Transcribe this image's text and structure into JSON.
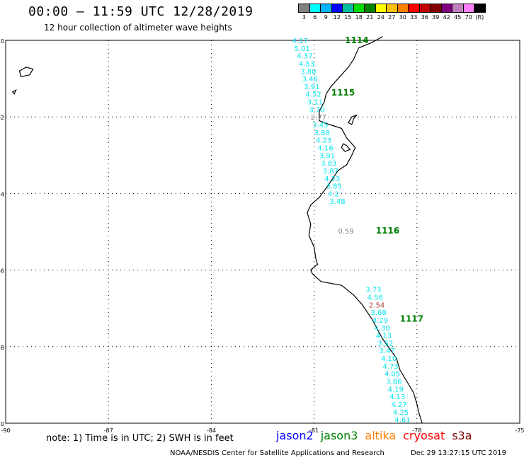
{
  "header": {
    "title": "00:00 – 11:59 UTC 12/28/2019",
    "subtitle": "12 hour collection of altimeter wave heights"
  },
  "colorbar": {
    "colors": [
      "#808080",
      "#00ffff",
      "#00b4ff",
      "#0000ff",
      "#00bfa0",
      "#00dc00",
      "#008000",
      "#ffff00",
      "#ffc000",
      "#ff8000",
      "#ff0000",
      "#c00000",
      "#800000",
      "#800080",
      "#c080c0",
      "#ff80ff",
      "#000000"
    ],
    "labels": [
      "3",
      "6",
      "9",
      "12",
      "15",
      "18",
      "21",
      "24",
      "27",
      "30",
      "33",
      "36",
      "39",
      "42",
      "45",
      "70",
      "(ft)"
    ]
  },
  "map": {
    "x_ticks": [
      {
        "value": -90,
        "label": "-90"
      },
      {
        "value": -87,
        "label": "-87"
      },
      {
        "value": -84,
        "label": "-84"
      },
      {
        "value": -81,
        "label": "-81"
      },
      {
        "value": -78,
        "label": "-78"
      },
      {
        "value": -75,
        "label": "-75"
      }
    ],
    "y_ticks": [
      {
        "value": 0,
        "label": "0"
      },
      {
        "value": -2,
        "label": "-2"
      },
      {
        "value": -4,
        "label": "-4"
      },
      {
        "value": -6,
        "label": "-6"
      },
      {
        "value": -8,
        "label": "-8"
      },
      {
        "value": -10,
        "label": "-10"
      }
    ],
    "colors": {
      "cyan": "#00e5ee",
      "gray": "#808080",
      "brown": "#a04040",
      "track": "#008000"
    },
    "track_labels": [
      {
        "text": "1114",
        "lon": -80.1,
        "lat": 0.0
      },
      {
        "text": "1115",
        "lon": -80.5,
        "lat": -1.37
      },
      {
        "text": "1116",
        "lon": -79.2,
        "lat": -4.97
      },
      {
        "text": "1117",
        "lon": -78.5,
        "lat": -7.27
      }
    ],
    "wave_heights": [
      {
        "text": "4.17",
        "lon": -81.64,
        "lat": 0.0,
        "color": "cyan"
      },
      {
        "text": "5.01",
        "lon": -81.58,
        "lat": -0.2,
        "color": "cyan"
      },
      {
        "text": "4.37",
        "lon": -81.5,
        "lat": -0.4,
        "color": "cyan"
      },
      {
        "text": "4.53",
        "lon": -81.45,
        "lat": -0.6,
        "color": "cyan"
      },
      {
        "text": "3.80",
        "lon": -81.4,
        "lat": -0.8,
        "color": "cyan"
      },
      {
        "text": "3.46",
        "lon": -81.35,
        "lat": -1.0,
        "color": "cyan"
      },
      {
        "text": "3.91",
        "lon": -81.3,
        "lat": -1.2,
        "color": "cyan"
      },
      {
        "text": "4.52",
        "lon": -81.25,
        "lat": -1.4,
        "color": "cyan"
      },
      {
        "text": "3.11",
        "lon": -81.2,
        "lat": -1.6,
        "color": "cyan"
      },
      {
        "text": "3.70",
        "lon": -81.15,
        "lat": -1.8,
        "color": "cyan"
      },
      {
        "text": "2.77",
        "lon": -81.1,
        "lat": -2.0,
        "color": "gray"
      },
      {
        "text": "3.45",
        "lon": -81.05,
        "lat": -2.2,
        "color": "cyan"
      },
      {
        "text": "3.88",
        "lon": -81.0,
        "lat": -2.4,
        "color": "cyan"
      },
      {
        "text": "4.23",
        "lon": -80.95,
        "lat": -2.6,
        "color": "cyan"
      },
      {
        "text": "4.16",
        "lon": -80.9,
        "lat": -2.8,
        "color": "cyan"
      },
      {
        "text": "3.91",
        "lon": -80.85,
        "lat": -3.0,
        "color": "cyan"
      },
      {
        "text": "3.83",
        "lon": -80.8,
        "lat": -3.2,
        "color": "cyan"
      },
      {
        "text": "3.87",
        "lon": -80.75,
        "lat": -3.4,
        "color": "cyan"
      },
      {
        "text": "4.23",
        "lon": -80.7,
        "lat": -3.6,
        "color": "cyan"
      },
      {
        "text": "3.85",
        "lon": -80.65,
        "lat": -3.8,
        "color": "cyan"
      },
      {
        "text": "4.2",
        "lon": -80.6,
        "lat": -4.0,
        "color": "cyan"
      },
      {
        "text": "3.48",
        "lon": -80.55,
        "lat": -4.2,
        "color": "cyan"
      },
      {
        "text": "0.59",
        "lon": -80.3,
        "lat": -4.97,
        "color": "gray"
      },
      {
        "text": "3.73",
        "lon": -79.5,
        "lat": -6.5,
        "color": "cyan"
      },
      {
        "text": "4.56",
        "lon": -79.45,
        "lat": -6.7,
        "color": "cyan"
      },
      {
        "text": "2.54",
        "lon": -79.4,
        "lat": -6.9,
        "color": "brown"
      },
      {
        "text": "3.68",
        "lon": -79.35,
        "lat": -7.1,
        "color": "cyan"
      },
      {
        "text": "4.29",
        "lon": -79.3,
        "lat": -7.3,
        "color": "cyan"
      },
      {
        "text": "4.30",
        "lon": -79.25,
        "lat": -7.5,
        "color": "cyan"
      },
      {
        "text": "4.13",
        "lon": -79.2,
        "lat": -7.7,
        "color": "cyan"
      },
      {
        "text": "3.52",
        "lon": -79.15,
        "lat": -7.9,
        "color": "cyan"
      },
      {
        "text": "3.47",
        "lon": -79.1,
        "lat": -8.1,
        "color": "cyan"
      },
      {
        "text": "4.10",
        "lon": -79.05,
        "lat": -8.3,
        "color": "cyan"
      },
      {
        "text": "4.73",
        "lon": -79.0,
        "lat": -8.5,
        "color": "cyan"
      },
      {
        "text": "4.05",
        "lon": -78.95,
        "lat": -8.7,
        "color": "cyan"
      },
      {
        "text": "3.86",
        "lon": -78.9,
        "lat": -8.9,
        "color": "cyan"
      },
      {
        "text": "4.19",
        "lon": -78.85,
        "lat": -9.1,
        "color": "cyan"
      },
      {
        "text": "4.13",
        "lon": -78.8,
        "lat": -9.3,
        "color": "cyan"
      },
      {
        "text": "4.27",
        "lon": -78.75,
        "lat": -9.5,
        "color": "cyan"
      },
      {
        "text": "4.25",
        "lon": -78.7,
        "lat": -9.7,
        "color": "cyan"
      },
      {
        "text": "4.61",
        "lon": -78.65,
        "lat": -9.9,
        "color": "cyan"
      }
    ],
    "coastline": [
      [
        -79.0,
        0.1
      ],
      [
        -79.3,
        -0.05
      ],
      [
        -79.7,
        -0.2
      ],
      [
        -79.85,
        -0.5
      ],
      [
        -80.0,
        -0.7
      ],
      [
        -80.2,
        -0.9
      ],
      [
        -80.5,
        -1.2
      ],
      [
        -80.65,
        -1.4
      ],
      [
        -80.7,
        -1.6
      ],
      [
        -80.85,
        -1.85
      ],
      [
        -80.85,
        -2.1
      ],
      [
        -80.55,
        -2.2
      ],
      [
        -80.2,
        -2.3
      ],
      [
        -80.05,
        -2.55
      ],
      [
        -79.8,
        -2.8
      ],
      [
        -79.9,
        -3.0
      ],
      [
        -80.05,
        -3.25
      ],
      [
        -80.3,
        -3.4
      ],
      [
        -80.45,
        -3.6
      ],
      [
        -80.6,
        -3.8
      ],
      [
        -80.85,
        -4.1
      ],
      [
        -81.1,
        -4.3
      ],
      [
        -81.2,
        -4.5
      ],
      [
        -81.1,
        -4.8
      ],
      [
        -81.15,
        -5.1
      ],
      [
        -81.0,
        -5.4
      ],
      [
        -80.95,
        -5.7
      ],
      [
        -80.9,
        -5.85
      ],
      [
        -81.1,
        -6.0
      ],
      [
        -81.05,
        -6.1
      ],
      [
        -80.8,
        -6.3
      ],
      [
        -80.2,
        -6.4
      ],
      [
        -79.85,
        -6.65
      ],
      [
        -79.6,
        -6.9
      ],
      [
        -79.45,
        -7.1
      ],
      [
        -79.3,
        -7.3
      ],
      [
        -79.15,
        -7.55
      ],
      [
        -79.0,
        -7.8
      ],
      [
        -78.8,
        -8.05
      ],
      [
        -78.6,
        -8.3
      ],
      [
        -78.5,
        -8.6
      ],
      [
        -78.3,
        -8.9
      ],
      [
        -78.1,
        -9.2
      ],
      [
        -78.0,
        -9.5
      ],
      [
        -77.95,
        -9.7
      ],
      [
        -77.85,
        -10.0
      ]
    ],
    "gulf": [
      [
        -79.9,
        -2.2
      ],
      [
        -79.85,
        -2.05
      ],
      [
        -79.75,
        -1.95
      ],
      [
        -79.9,
        -2.0
      ],
      [
        -80.0,
        -2.15
      ],
      [
        -79.9,
        -2.2
      ]
    ],
    "puna_island": [
      [
        -80.15,
        -2.7
      ],
      [
        -80.05,
        -2.75
      ],
      [
        -79.95,
        -2.85
      ],
      [
        -80.1,
        -2.9
      ],
      [
        -80.2,
        -2.8
      ],
      [
        -80.15,
        -2.7
      ]
    ],
    "galapagos": [
      [
        [
          -89.6,
          -0.8
        ],
        [
          -89.4,
          -0.7
        ],
        [
          -89.2,
          -0.75
        ],
        [
          -89.3,
          -0.9
        ],
        [
          -89.55,
          -0.95
        ],
        [
          -89.6,
          -0.8
        ]
      ],
      [
        [
          -89.8,
          -1.35
        ],
        [
          -89.7,
          -1.3
        ],
        [
          -89.75,
          -1.4
        ],
        [
          -89.8,
          -1.35
        ]
      ]
    ]
  },
  "footer": {
    "note": "note:  1) Time is in UTC;  2) SWH is in feet",
    "missions": [
      {
        "name": "jason2",
        "color": "#0000ff"
      },
      {
        "name": "jason3",
        "color": "#008000"
      },
      {
        "name": "altika",
        "color": "#ff8000"
      },
      {
        "name": "cryosat",
        "color": "#ff0000"
      },
      {
        "name": "s3a",
        "color": "#800000"
      }
    ],
    "credit": "NOAA/NESDIS Center for Satellite Applications and Research",
    "timestamp": "Dec 29 13:27:15 UTC 2019"
  }
}
